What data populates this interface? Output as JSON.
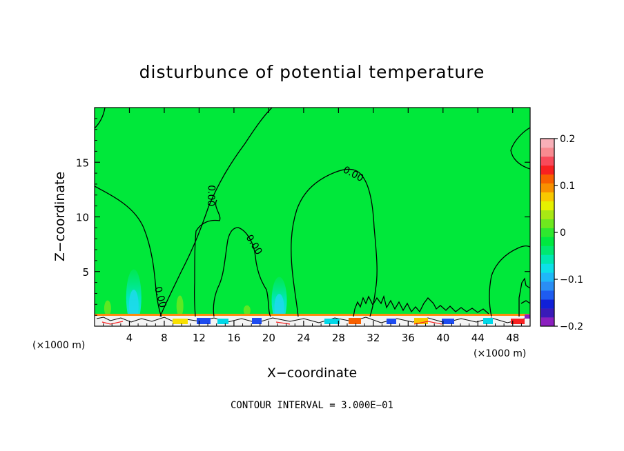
{
  "chart_data": {
    "type": "heatmap",
    "title": "disturbunce of potential temperature",
    "xlabel": "X−coordinate",
    "ylabel": "Z−coordinate",
    "x_unit_left": "(×1000 m)",
    "x_unit_right": "(×1000 m)",
    "xlim": [
      0,
      50
    ],
    "ylim": [
      0,
      20
    ],
    "x_ticks": [
      4,
      8,
      12,
      16,
      20,
      24,
      28,
      32,
      36,
      40,
      44,
      48
    ],
    "y_ticks": [
      5,
      10,
      15
    ],
    "contour_label": "0.00",
    "contour_interval_text": "CONTOUR INTERVAL = 3.000E−01",
    "colorbar": {
      "min": -0.2,
      "max": 0.2,
      "tick_values": [
        0.2,
        0.1,
        0,
        -0.1,
        -0.2
      ],
      "tick_labels": [
        "0.2",
        "0.1",
        "0",
        "−0.1",
        "−0.2"
      ],
      "colors": [
        "#8b1fbf",
        "#3a1ab8",
        "#1020d8",
        "#1e5cf0",
        "#2a8ef5",
        "#1fb8f8",
        "#0de0e8",
        "#00e8b0",
        "#00e870",
        "#00e840",
        "#2ee82e",
        "#6ee81e",
        "#a8e814",
        "#e6f000",
        "#f8c800",
        "#f89000",
        "#f86000",
        "#f82020",
        "#f84a5a",
        "#f88a90",
        "#f8b0b8"
      ]
    },
    "background_value": 0,
    "background_color": "#00e83a",
    "features": [
      {
        "name": "cold-column-1",
        "x": 4.5,
        "z_top": 5.2,
        "value": -0.04
      },
      {
        "name": "cold-column-2",
        "x": 21.2,
        "z_top": 4.5,
        "value": -0.04
      },
      {
        "name": "warm-patch-1",
        "x": 1.5,
        "z_top": 2.5,
        "value": 0.02
      },
      {
        "name": "warm-patch-2",
        "x": 9.8,
        "z_top": 3.0,
        "value": 0.02
      },
      {
        "name": "warm-patch-3",
        "x": 17.5,
        "z_top": 2.0,
        "value": 0.02
      }
    ]
  }
}
